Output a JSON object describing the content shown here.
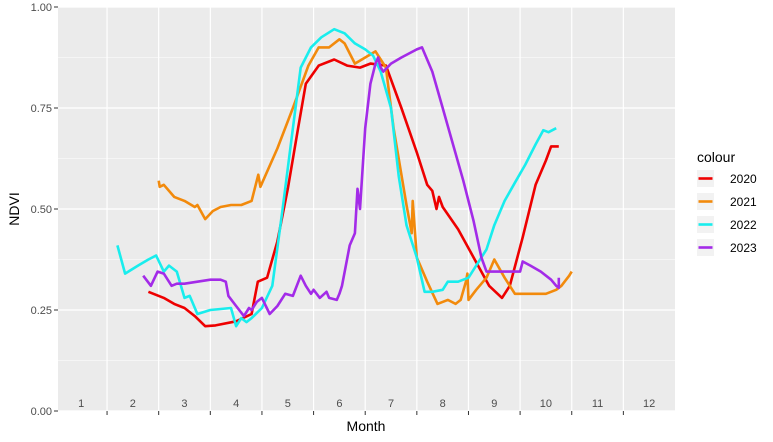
{
  "chart_data": {
    "type": "line",
    "xlabel": "Month",
    "ylabel": "NDVI",
    "xlim": [
      0.55,
      12.5
    ],
    "ylim": [
      0,
      1
    ],
    "x_ticks": [
      "1",
      "2",
      "3",
      "4",
      "5",
      "6",
      "7",
      "8",
      "9",
      "10",
      "11",
      "12"
    ],
    "y_ticks": [
      "0.00",
      "0.25",
      "0.50",
      "0.75",
      "1.00"
    ],
    "legend": {
      "title": "colour",
      "position": "right"
    },
    "grid": true,
    "series": [
      {
        "name": "2020",
        "color": "#ee0000",
        "points": [
          [
            2.3,
            0.295
          ],
          [
            2.6,
            0.28
          ],
          [
            2.8,
            0.265
          ],
          [
            3.0,
            0.255
          ],
          [
            3.2,
            0.235
          ],
          [
            3.4,
            0.21
          ],
          [
            3.6,
            0.212
          ],
          [
            4.0,
            0.222
          ],
          [
            4.3,
            0.24
          ],
          [
            4.42,
            0.32
          ],
          [
            4.6,
            0.33
          ],
          [
            4.8,
            0.42
          ],
          [
            5.0,
            0.55
          ],
          [
            5.2,
            0.7
          ],
          [
            5.35,
            0.81
          ],
          [
            5.6,
            0.855
          ],
          [
            5.9,
            0.87
          ],
          [
            6.15,
            0.855
          ],
          [
            6.4,
            0.85
          ],
          [
            6.6,
            0.86
          ],
          [
            6.9,
            0.855
          ],
          [
            7.2,
            0.75
          ],
          [
            7.5,
            0.64
          ],
          [
            7.7,
            0.56
          ],
          [
            7.8,
            0.545
          ],
          [
            7.88,
            0.5
          ],
          [
            7.93,
            0.53
          ],
          [
            8.0,
            0.505
          ],
          [
            8.3,
            0.45
          ],
          [
            8.6,
            0.38
          ],
          [
            8.9,
            0.31
          ],
          [
            9.15,
            0.28
          ],
          [
            9.3,
            0.31
          ],
          [
            9.55,
            0.43
          ],
          [
            9.8,
            0.56
          ],
          [
            10.0,
            0.62
          ],
          [
            10.1,
            0.655
          ],
          [
            10.25,
            0.655
          ]
        ]
      },
      {
        "name": "2021",
        "color": "#f28a0c",
        "points": [
          [
            2.5,
            0.57
          ],
          [
            2.52,
            0.555
          ],
          [
            2.6,
            0.56
          ],
          [
            2.8,
            0.53
          ],
          [
            3.0,
            0.52
          ],
          [
            3.2,
            0.505
          ],
          [
            3.25,
            0.51
          ],
          [
            3.4,
            0.475
          ],
          [
            3.55,
            0.495
          ],
          [
            3.7,
            0.505
          ],
          [
            3.9,
            0.51
          ],
          [
            4.1,
            0.51
          ],
          [
            4.3,
            0.52
          ],
          [
            4.43,
            0.585
          ],
          [
            4.47,
            0.555
          ],
          [
            4.8,
            0.65
          ],
          [
            5.1,
            0.75
          ],
          [
            5.4,
            0.855
          ],
          [
            5.6,
            0.9
          ],
          [
            5.8,
            0.9
          ],
          [
            6.0,
            0.92
          ],
          [
            6.1,
            0.91
          ],
          [
            6.3,
            0.86
          ],
          [
            6.5,
            0.875
          ],
          [
            6.7,
            0.89
          ],
          [
            6.9,
            0.85
          ],
          [
            7.05,
            0.7
          ],
          [
            7.3,
            0.51
          ],
          [
            7.4,
            0.44
          ],
          [
            7.42,
            0.52
          ],
          [
            7.5,
            0.38
          ],
          [
            7.7,
            0.32
          ],
          [
            7.9,
            0.265
          ],
          [
            8.1,
            0.275
          ],
          [
            8.25,
            0.265
          ],
          [
            8.35,
            0.275
          ],
          [
            8.45,
            0.32
          ],
          [
            8.48,
            0.34
          ],
          [
            8.5,
            0.275
          ],
          [
            8.65,
            0.3
          ],
          [
            8.85,
            0.33
          ],
          [
            9.0,
            0.375
          ],
          [
            9.2,
            0.33
          ],
          [
            9.4,
            0.29
          ],
          [
            9.6,
            0.29
          ],
          [
            9.8,
            0.29
          ],
          [
            10.0,
            0.29
          ],
          [
            10.2,
            0.3
          ],
          [
            10.3,
            0.31
          ],
          [
            10.45,
            0.335
          ],
          [
            10.5,
            0.345
          ]
        ]
      },
      {
        "name": "2022",
        "color": "#19eded",
        "points": [
          [
            1.7,
            0.41
          ],
          [
            1.85,
            0.34
          ],
          [
            2.1,
            0.36
          ],
          [
            2.3,
            0.375
          ],
          [
            2.45,
            0.385
          ],
          [
            2.6,
            0.345
          ],
          [
            2.7,
            0.36
          ],
          [
            2.85,
            0.345
          ],
          [
            3.0,
            0.28
          ],
          [
            3.1,
            0.285
          ],
          [
            3.25,
            0.24
          ],
          [
            3.5,
            0.25
          ],
          [
            3.9,
            0.255
          ],
          [
            4.0,
            0.21
          ],
          [
            4.1,
            0.23
          ],
          [
            4.2,
            0.22
          ],
          [
            4.3,
            0.23
          ],
          [
            4.5,
            0.255
          ],
          [
            4.7,
            0.31
          ],
          [
            4.9,
            0.5
          ],
          [
            5.1,
            0.7
          ],
          [
            5.25,
            0.85
          ],
          [
            5.45,
            0.9
          ],
          [
            5.65,
            0.925
          ],
          [
            5.9,
            0.945
          ],
          [
            6.1,
            0.935
          ],
          [
            6.3,
            0.91
          ],
          [
            6.5,
            0.895
          ],
          [
            6.65,
            0.88
          ],
          [
            6.8,
            0.84
          ],
          [
            7.0,
            0.75
          ],
          [
            7.15,
            0.58
          ],
          [
            7.3,
            0.46
          ],
          [
            7.5,
            0.38
          ],
          [
            7.65,
            0.295
          ],
          [
            7.8,
            0.295
          ],
          [
            8.0,
            0.3
          ],
          [
            8.1,
            0.32
          ],
          [
            8.3,
            0.32
          ],
          [
            8.5,
            0.33
          ],
          [
            8.65,
            0.36
          ],
          [
            8.85,
            0.4
          ],
          [
            9.0,
            0.46
          ],
          [
            9.2,
            0.52
          ],
          [
            9.4,
            0.565
          ],
          [
            9.6,
            0.61
          ],
          [
            9.8,
            0.66
          ],
          [
            9.95,
            0.695
          ],
          [
            10.05,
            0.69
          ],
          [
            10.2,
            0.7
          ]
        ]
      },
      {
        "name": "2023",
        "color": "#a32be8",
        "points": [
          [
            2.2,
            0.335
          ],
          [
            2.35,
            0.31
          ],
          [
            2.48,
            0.345
          ],
          [
            2.6,
            0.34
          ],
          [
            2.75,
            0.31
          ],
          [
            2.85,
            0.315
          ],
          [
            3.0,
            0.315
          ],
          [
            3.25,
            0.32
          ],
          [
            3.5,
            0.325
          ],
          [
            3.7,
            0.325
          ],
          [
            3.8,
            0.32
          ],
          [
            3.85,
            0.285
          ],
          [
            4.0,
            0.26
          ],
          [
            4.15,
            0.235
          ],
          [
            4.2,
            0.245
          ],
          [
            4.25,
            0.255
          ],
          [
            4.3,
            0.25
          ],
          [
            4.4,
            0.27
          ],
          [
            4.5,
            0.28
          ],
          [
            4.65,
            0.24
          ],
          [
            4.8,
            0.26
          ],
          [
            4.95,
            0.29
          ],
          [
            5.1,
            0.285
          ],
          [
            5.25,
            0.335
          ],
          [
            5.35,
            0.31
          ],
          [
            5.45,
            0.29
          ],
          [
            5.5,
            0.3
          ],
          [
            5.62,
            0.28
          ],
          [
            5.75,
            0.295
          ],
          [
            5.8,
            0.28
          ],
          [
            5.95,
            0.275
          ],
          [
            6.0,
            0.29
          ],
          [
            6.05,
            0.31
          ],
          [
            6.2,
            0.41
          ],
          [
            6.3,
            0.44
          ],
          [
            6.35,
            0.55
          ],
          [
            6.4,
            0.5
          ],
          [
            6.5,
            0.7
          ],
          [
            6.6,
            0.81
          ],
          [
            6.7,
            0.86
          ],
          [
            6.75,
            0.875
          ],
          [
            6.8,
            0.85
          ],
          [
            6.85,
            0.84
          ],
          [
            7.0,
            0.86
          ],
          [
            7.2,
            0.875
          ],
          [
            7.5,
            0.895
          ],
          [
            7.6,
            0.9
          ],
          [
            7.8,
            0.84
          ],
          [
            8.0,
            0.75
          ],
          [
            8.2,
            0.66
          ],
          [
            8.4,
            0.57
          ],
          [
            8.6,
            0.47
          ],
          [
            8.75,
            0.38
          ],
          [
            8.85,
            0.345
          ],
          [
            9.0,
            0.345
          ],
          [
            9.2,
            0.345
          ],
          [
            9.5,
            0.345
          ],
          [
            9.55,
            0.37
          ],
          [
            9.7,
            0.36
          ],
          [
            9.9,
            0.345
          ],
          [
            10.1,
            0.325
          ],
          [
            10.2,
            0.31
          ],
          [
            10.25,
            0.305
          ],
          [
            10.25,
            0.33
          ]
        ]
      }
    ]
  }
}
